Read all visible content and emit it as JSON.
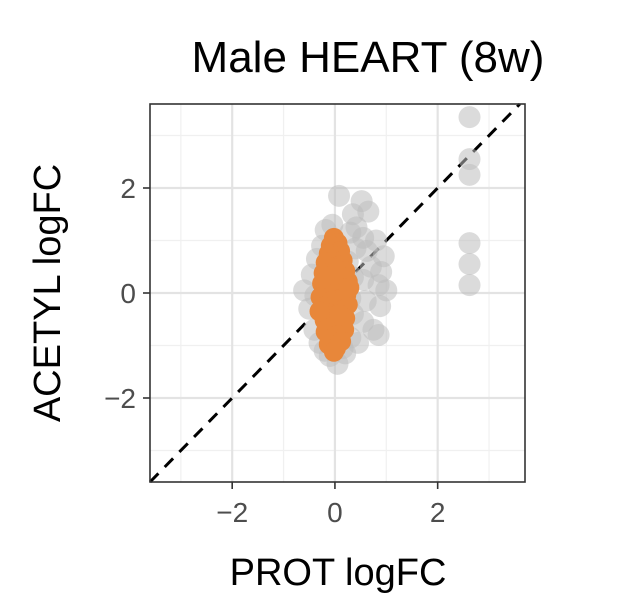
{
  "chart_data": {
    "type": "scatter",
    "title": "Male HEART (8w)",
    "xlabel": "PROT logFC",
    "ylabel": "ACETYL logFC",
    "xlim": [
      -3.6,
      3.7
    ],
    "ylim": [
      -3.6,
      3.6
    ],
    "xticks": [
      -2,
      0,
      2
    ],
    "yticks": [
      -2,
      0,
      2
    ],
    "xtick_labels": [
      "−2",
      "0",
      "2"
    ],
    "ytick_labels": [
      "−2",
      "0",
      "2"
    ],
    "grid": true,
    "reference_line": {
      "style": "dashed",
      "slope": 1,
      "intercept": 0,
      "color": "#000000"
    },
    "series": [
      {
        "color": "#bdbdbd",
        "points": [
          [
            2.62,
            3.35
          ],
          [
            2.62,
            2.55
          ],
          [
            2.62,
            2.25
          ],
          [
            2.62,
            0.95
          ],
          [
            2.62,
            0.55
          ],
          [
            2.62,
            0.15
          ],
          [
            0.08,
            1.85
          ],
          [
            0.52,
            1.75
          ],
          [
            0.65,
            1.55
          ],
          [
            0.35,
            1.5
          ],
          [
            -0.05,
            1.3
          ],
          [
            0.42,
            1.25
          ],
          [
            -0.18,
            1.2
          ],
          [
            0.3,
            1.15
          ],
          [
            0.55,
            1.05
          ],
          [
            0.8,
            1.0
          ],
          [
            -0.25,
            0.9
          ],
          [
            0.4,
            0.85
          ],
          [
            0.62,
            0.8
          ],
          [
            0.95,
            0.7
          ],
          [
            -0.35,
            0.65
          ],
          [
            0.25,
            0.6
          ],
          [
            0.7,
            0.5
          ],
          [
            0.9,
            0.4
          ],
          [
            -0.45,
            0.35
          ],
          [
            0.35,
            0.3
          ],
          [
            0.55,
            0.25
          ],
          [
            0.85,
            0.15
          ],
          [
            1.0,
            0.05
          ],
          [
            -0.6,
            0.05
          ],
          [
            -0.38,
            -0.05
          ],
          [
            0.3,
            -0.1
          ],
          [
            0.6,
            -0.15
          ],
          [
            0.88,
            -0.25
          ],
          [
            -0.5,
            -0.3
          ],
          [
            0.35,
            -0.4
          ],
          [
            0.55,
            -0.55
          ],
          [
            0.75,
            -0.7
          ],
          [
            -0.4,
            -0.7
          ],
          [
            0.3,
            -0.85
          ],
          [
            0.85,
            -0.8
          ],
          [
            -0.3,
            -0.95
          ],
          [
            0.15,
            -1.05
          ],
          [
            -0.1,
            -1.2
          ],
          [
            0.05,
            -1.35
          ],
          [
            0.2,
            -1.15
          ],
          [
            -0.2,
            -1.1
          ],
          [
            0.45,
            -0.95
          ]
        ]
      },
      {
        "color": "#e8873a",
        "points": [
          [
            -0.02,
            1.05
          ],
          [
            0.05,
            0.95
          ],
          [
            -0.08,
            0.9
          ],
          [
            0.1,
            0.8
          ],
          [
            -0.12,
            0.75
          ],
          [
            0.02,
            0.7
          ],
          [
            0.15,
            0.62
          ],
          [
            -0.18,
            0.58
          ],
          [
            0.08,
            0.52
          ],
          [
            -0.05,
            0.48
          ],
          [
            0.2,
            0.42
          ],
          [
            -0.22,
            0.38
          ],
          [
            0.12,
            0.32
          ],
          [
            -0.1,
            0.28
          ],
          [
            0.25,
            0.22
          ],
          [
            -0.25,
            0.18
          ],
          [
            0.05,
            0.14
          ],
          [
            0.18,
            0.08
          ],
          [
            -0.18,
            0.04
          ],
          [
            0.0,
            0.0
          ],
          [
            0.22,
            -0.04
          ],
          [
            -0.28,
            -0.08
          ],
          [
            0.1,
            -0.12
          ],
          [
            -0.08,
            -0.16
          ],
          [
            0.25,
            -0.22
          ],
          [
            -0.22,
            -0.26
          ],
          [
            0.15,
            -0.32
          ],
          [
            -0.15,
            -0.38
          ],
          [
            0.05,
            -0.42
          ],
          [
            0.2,
            -0.48
          ],
          [
            -0.2,
            -0.52
          ],
          [
            0.1,
            -0.58
          ],
          [
            -0.1,
            -0.62
          ],
          [
            0.18,
            -0.7
          ],
          [
            -0.18,
            -0.74
          ],
          [
            0.05,
            -0.8
          ],
          [
            -0.05,
            -0.86
          ],
          [
            0.12,
            -0.92
          ],
          [
            -0.12,
            -0.98
          ],
          [
            0.02,
            -1.05
          ],
          [
            -0.02,
            -1.12
          ],
          [
            0.08,
            -0.4
          ],
          [
            -0.02,
            0.35
          ],
          [
            0.28,
            0.1
          ],
          [
            -0.3,
            -0.35
          ]
        ]
      }
    ]
  }
}
